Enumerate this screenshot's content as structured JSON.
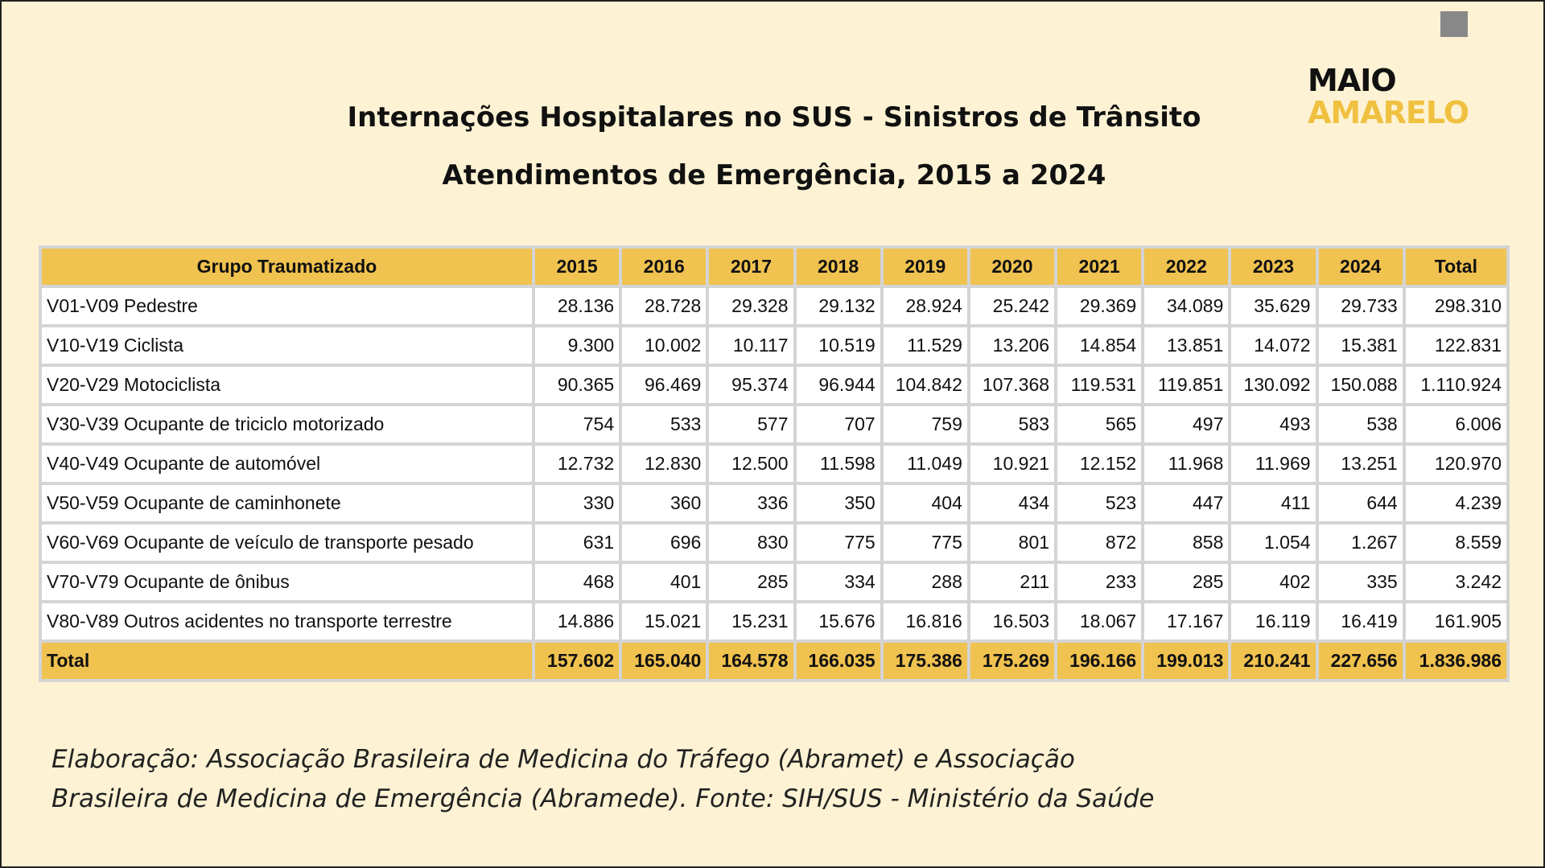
{
  "header": {
    "title": "Internações Hospitalares no SUS - Sinistros de Trânsito",
    "subtitle": "Atendimentos de Emergência, 2015 a 2024",
    "logo": [
      "MAIO",
      "AMARELO"
    ]
  },
  "table": {
    "header": [
      "Grupo Traumatizado",
      "2015",
      "2016",
      "2017",
      "2018",
      "2019",
      "2020",
      "2021",
      "2022",
      "2023",
      "2024",
      "Total"
    ],
    "rows": [
      [
        "V01-V09 Pedestre",
        "28.136",
        "28.728",
        "29.328",
        "29.132",
        "28.924",
        "25.242",
        "29.369",
        "34.089",
        "35.629",
        "29.733",
        "298.310"
      ],
      [
        "V10-V19 Ciclista",
        "9.300",
        "10.002",
        "10.117",
        "10.519",
        "11.529",
        "13.206",
        "14.854",
        "13.851",
        "14.072",
        "15.381",
        "122.831"
      ],
      [
        "V20-V29 Motociclista",
        "90.365",
        "96.469",
        "95.374",
        "96.944",
        "104.842",
        "107.368",
        "119.531",
        "119.851",
        "130.092",
        "150.088",
        "1.110.924"
      ],
      [
        "V30-V39 Ocupante de triciclo motorizado",
        "754",
        "533",
        "577",
        "707",
        "759",
        "583",
        "565",
        "497",
        "493",
        "538",
        "6.006"
      ],
      [
        "V40-V49 Ocupante de automóvel",
        "12.732",
        "12.830",
        "12.500",
        "11.598",
        "11.049",
        "10.921",
        "12.152",
        "11.968",
        "11.969",
        "13.251",
        "120.970"
      ],
      [
        "V50-V59 Ocupante de caminhonete",
        "330",
        "360",
        "336",
        "350",
        "404",
        "434",
        "523",
        "447",
        "411",
        "644",
        "4.239"
      ],
      [
        "V60-V69 Ocupante de veículo de transporte pesado",
        "631",
        "696",
        "830",
        "775",
        "775",
        "801",
        "872",
        "858",
        "1.054",
        "1.267",
        "8.559"
      ],
      [
        "V70-V79 Ocupante de ônibus",
        "468",
        "401",
        "285",
        "334",
        "288",
        "211",
        "233",
        "285",
        "402",
        "335",
        "3.242"
      ],
      [
        "V80-V89 Outros acidentes no transporte terrestre",
        "14.886",
        "15.021",
        "15.231",
        "15.676",
        "16.816",
        "16.503",
        "18.067",
        "17.167",
        "16.119",
        "16.419",
        "161.905"
      ]
    ],
    "total": [
      "Total",
      "157.602",
      "165.040",
      "164.578",
      "166.035",
      "175.386",
      "175.269",
      "196.166",
      "199.013",
      "210.241",
      "227.656",
      "1.836.986"
    ]
  },
  "footer": [
    "Elaboração: Associação Brasileira de Medicina do Tráfego (Abramet) e Associação",
    "Brasileira de Medicina de Emergência (Abramede). Fonte: SIH/SUS - Ministério da Saúde"
  ]
}
